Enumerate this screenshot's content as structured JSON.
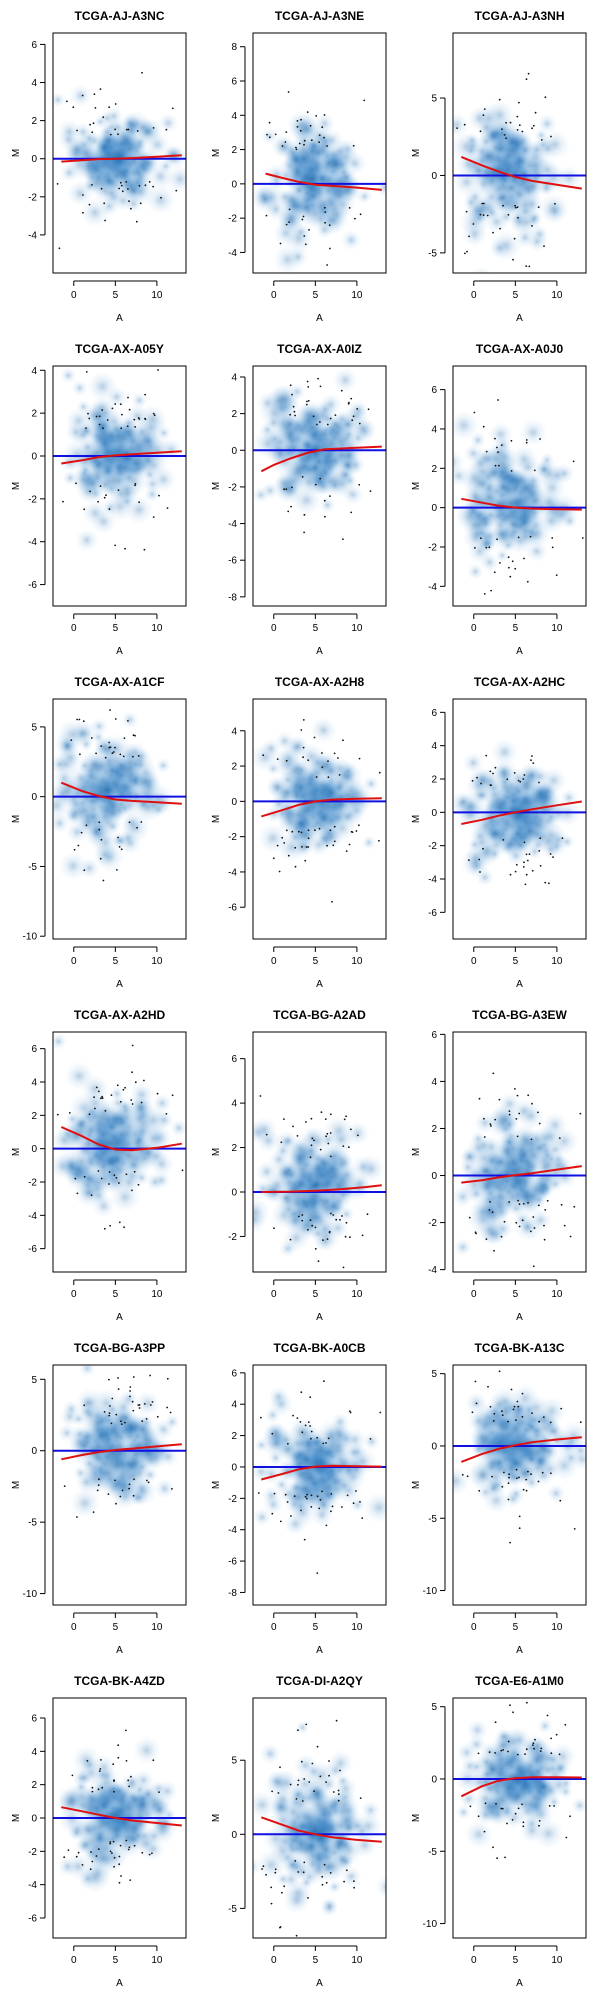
{
  "figure": {
    "xlabel": "A",
    "ylabel": "M"
  },
  "colors": {
    "density": "#2a7fc8",
    "loess": "#e01010",
    "baseline": "#1010e0",
    "points": "#111111"
  },
  "chart_data": [
    {
      "type": "scatter",
      "title": "TCGA-AJ-A3NC",
      "xlabel": "A",
      "ylabel": "M",
      "xlim": [
        -2.5,
        13.5
      ],
      "ylim": [
        -6,
        6.6
      ],
      "xticks": [
        0,
        5,
        10
      ],
      "yticks": [
        -4,
        -2,
        0,
        2,
        4,
        6
      ],
      "loess": [
        [
          -1.5,
          -0.15
        ],
        [
          1,
          -0.08
        ],
        [
          3,
          -0.02
        ],
        [
          5,
          0.0
        ],
        [
          7,
          0.03
        ],
        [
          10,
          0.1
        ],
        [
          13,
          0.18
        ]
      ],
      "cloud": [
        5,
        0.0,
        3,
        1.3
      ],
      "baseline": 0
    },
    {
      "type": "scatter",
      "title": "TCGA-AJ-A3NE",
      "xlabel": "A",
      "ylabel": "M",
      "xlim": [
        -2.5,
        13.5
      ],
      "ylim": [
        -5.2,
        8.8
      ],
      "xticks": [
        0,
        5,
        10
      ],
      "yticks": [
        -4,
        -2,
        0,
        2,
        4,
        6,
        8
      ],
      "loess": [
        [
          -1,
          0.6
        ],
        [
          1,
          0.35
        ],
        [
          3,
          0.12
        ],
        [
          5,
          -0.05
        ],
        [
          7,
          -0.12
        ],
        [
          10,
          -0.22
        ],
        [
          13,
          -0.35
        ]
      ],
      "cloud": [
        4.5,
        0.3,
        3,
        1.8
      ],
      "baseline": 0
    },
    {
      "type": "scatter",
      "title": "TCGA-AJ-A3NH",
      "xlabel": "A",
      "ylabel": "M",
      "xlim": [
        -2.5,
        13.5
      ],
      "ylim": [
        -6.3,
        9.2
      ],
      "xticks": [
        0,
        5,
        10
      ],
      "yticks": [
        -5,
        0,
        5
      ],
      "loess": [
        [
          -1.5,
          1.2
        ],
        [
          1,
          0.65
        ],
        [
          3,
          0.25
        ],
        [
          5,
          -0.1
        ],
        [
          7,
          -0.35
        ],
        [
          10,
          -0.6
        ],
        [
          13,
          -0.85
        ]
      ],
      "cloud": [
        4,
        0.3,
        3,
        2.2
      ],
      "baseline": 0
    },
    {
      "type": "scatter",
      "title": "TCGA-AX-A05Y",
      "xlabel": "A",
      "ylabel": "M",
      "xlim": [
        -2.5,
        13.5
      ],
      "ylim": [
        -7,
        4.2
      ],
      "xticks": [
        0,
        5,
        10
      ],
      "yticks": [
        -6,
        -4,
        -2,
        0,
        2,
        4
      ],
      "loess": [
        [
          -1.5,
          -0.35
        ],
        [
          1,
          -0.2
        ],
        [
          3,
          -0.05
        ],
        [
          5,
          0.03
        ],
        [
          7,
          0.08
        ],
        [
          10,
          0.15
        ],
        [
          13,
          0.22
        ]
      ],
      "cloud": [
        5,
        0.0,
        3,
        1.4
      ],
      "baseline": 0
    },
    {
      "type": "scatter",
      "title": "TCGA-AX-A0IZ",
      "xlabel": "A",
      "ylabel": "M",
      "xlim": [
        -2.5,
        13.5
      ],
      "ylim": [
        -8.5,
        4.6
      ],
      "xticks": [
        0,
        5,
        10
      ],
      "yticks": [
        -8,
        -6,
        -4,
        -2,
        0,
        2,
        4
      ],
      "loess": [
        [
          -1.5,
          -1.15
        ],
        [
          0,
          -0.8
        ],
        [
          2,
          -0.45
        ],
        [
          4,
          -0.15
        ],
        [
          6,
          0.05
        ],
        [
          9,
          0.12
        ],
        [
          13,
          0.2
        ]
      ],
      "cloud": [
        5,
        0.0,
        3,
        1.5
      ],
      "baseline": 0
    },
    {
      "type": "scatter",
      "title": "TCGA-AX-A0J0",
      "xlabel": "A",
      "ylabel": "M",
      "xlim": [
        -2.5,
        13.5
      ],
      "ylim": [
        -5,
        7.2
      ],
      "xticks": [
        0,
        5,
        10
      ],
      "yticks": [
        -4,
        -2,
        0,
        2,
        4,
        6
      ],
      "loess": [
        [
          -1.5,
          0.45
        ],
        [
          1,
          0.25
        ],
        [
          3,
          0.1
        ],
        [
          5,
          0.0
        ],
        [
          7,
          -0.05
        ],
        [
          10,
          -0.08
        ],
        [
          13,
          -0.1
        ]
      ],
      "cloud": [
        4.5,
        0.2,
        3,
        1.7
      ],
      "baseline": 0
    },
    {
      "type": "scatter",
      "title": "TCGA-AX-A1CF",
      "xlabel": "A",
      "ylabel": "M",
      "xlim": [
        -2.5,
        13.5
      ],
      "ylim": [
        -10.2,
        7
      ],
      "xticks": [
        0,
        5,
        10
      ],
      "yticks": [
        -10,
        -5,
        0,
        5
      ],
      "loess": [
        [
          -1.5,
          1.0
        ],
        [
          1,
          0.4
        ],
        [
          3,
          0.05
        ],
        [
          5,
          -0.2
        ],
        [
          7,
          -0.3
        ],
        [
          10,
          -0.4
        ],
        [
          13,
          -0.5
        ]
      ],
      "cloud": [
        4,
        0.5,
        3,
        2.3
      ],
      "baseline": 0
    },
    {
      "type": "scatter",
      "title": "TCGA-AX-A2H8",
      "xlabel": "A",
      "ylabel": "M",
      "xlim": [
        -2.5,
        13.5
      ],
      "ylim": [
        -7.8,
        5.8
      ],
      "xticks": [
        0,
        5,
        10
      ],
      "yticks": [
        -6,
        -4,
        -2,
        0,
        2,
        4
      ],
      "loess": [
        [
          -1.5,
          -0.85
        ],
        [
          1,
          -0.5
        ],
        [
          3,
          -0.2
        ],
        [
          5,
          0.0
        ],
        [
          7,
          0.1
        ],
        [
          10,
          0.15
        ],
        [
          13,
          0.18
        ]
      ],
      "cloud": [
        5,
        0.0,
        3,
        1.5
      ],
      "baseline": 0
    },
    {
      "type": "scatter",
      "title": "TCGA-AX-A2HC",
      "xlabel": "A",
      "ylabel": "M",
      "xlim": [
        -2.5,
        13.5
      ],
      "ylim": [
        -7.6,
        6.8
      ],
      "xticks": [
        0,
        5,
        10
      ],
      "yticks": [
        -6,
        -4,
        -2,
        0,
        2,
        4,
        6
      ],
      "loess": [
        [
          -1.5,
          -0.7
        ],
        [
          1,
          -0.45
        ],
        [
          3,
          -0.2
        ],
        [
          5,
          0.0
        ],
        [
          7,
          0.18
        ],
        [
          10,
          0.42
        ],
        [
          13,
          0.65
        ]
      ],
      "cloud": [
        5,
        0.0,
        3,
        1.7
      ],
      "baseline": 0
    },
    {
      "type": "scatter",
      "title": "TCGA-AX-A2HD",
      "xlabel": "A",
      "ylabel": "M",
      "xlim": [
        -2.5,
        13.5
      ],
      "ylim": [
        -7.4,
        7
      ],
      "xticks": [
        0,
        5,
        10
      ],
      "yticks": [
        -6,
        -4,
        -2,
        0,
        2,
        4,
        6
      ],
      "loess": [
        [
          -1.5,
          1.3
        ],
        [
          1,
          0.75
        ],
        [
          3,
          0.25
        ],
        [
          5,
          -0.05
        ],
        [
          7,
          -0.1
        ],
        [
          10,
          0.05
        ],
        [
          13,
          0.3
        ]
      ],
      "cloud": [
        4.5,
        0.3,
        3,
        1.7
      ],
      "baseline": 0
    },
    {
      "type": "scatter",
      "title": "TCGA-BG-A2AD",
      "xlabel": "A",
      "ylabel": "M",
      "xlim": [
        -2.5,
        13.5
      ],
      "ylim": [
        -3.6,
        7.2
      ],
      "xticks": [
        0,
        5,
        10
      ],
      "yticks": [
        -2,
        0,
        2,
        4,
        6
      ],
      "loess": [
        [
          -1.5,
          0.0
        ],
        [
          2,
          0.02
        ],
        [
          5,
          0.06
        ],
        [
          8,
          0.12
        ],
        [
          11,
          0.22
        ],
        [
          13,
          0.3
        ]
      ],
      "cloud": [
        5,
        0.3,
        3,
        1.4
      ],
      "baseline": 0
    },
    {
      "type": "scatter",
      "title": "TCGA-BG-A3EW",
      "xlabel": "A",
      "ylabel": "M",
      "xlim": [
        -2.5,
        13.5
      ],
      "ylim": [
        -4.1,
        6.1
      ],
      "xticks": [
        0,
        5,
        10
      ],
      "yticks": [
        -4,
        -2,
        0,
        2,
        4,
        6
      ],
      "loess": [
        [
          -1.5,
          -0.3
        ],
        [
          1,
          -0.2
        ],
        [
          3,
          -0.08
        ],
        [
          5,
          0.02
        ],
        [
          7,
          0.1
        ],
        [
          10,
          0.25
        ],
        [
          13,
          0.4
        ]
      ],
      "cloud": [
        5,
        0.2,
        3,
        1.4
      ],
      "baseline": 0
    },
    {
      "type": "scatter",
      "title": "TCGA-BG-A3PP",
      "xlabel": "A",
      "ylabel": "M",
      "xlim": [
        -2.5,
        13.5
      ],
      "ylim": [
        -10.8,
        6
      ],
      "xticks": [
        0,
        5,
        10
      ],
      "yticks": [
        -10,
        -5,
        0,
        5
      ],
      "loess": [
        [
          -1.5,
          -0.6
        ],
        [
          1,
          -0.3
        ],
        [
          3,
          -0.1
        ],
        [
          5,
          0.05
        ],
        [
          7,
          0.15
        ],
        [
          10,
          0.3
        ],
        [
          13,
          0.45
        ]
      ],
      "cloud": [
        5,
        0.0,
        3,
        2.0
      ],
      "baseline": 0
    },
    {
      "type": "scatter",
      "title": "TCGA-BK-A0CB",
      "xlabel": "A",
      "ylabel": "M",
      "xlim": [
        -2.5,
        13.5
      ],
      "ylim": [
        -8.8,
        6.5
      ],
      "xticks": [
        0,
        5,
        10
      ],
      "yticks": [
        -8,
        -6,
        -4,
        -2,
        0,
        2,
        4,
        6
      ],
      "loess": [
        [
          -1.5,
          -0.8
        ],
        [
          1,
          -0.45
        ],
        [
          3,
          -0.15
        ],
        [
          5,
          0.02
        ],
        [
          7,
          0.08
        ],
        [
          10,
          0.05
        ],
        [
          13,
          0.02
        ]
      ],
      "cloud": [
        5,
        0.0,
        3,
        1.6
      ],
      "baseline": 0
    },
    {
      "type": "scatter",
      "title": "TCGA-BK-A13C",
      "xlabel": "A",
      "ylabel": "M",
      "xlim": [
        -2.5,
        13.5
      ],
      "ylim": [
        -11,
        5.6
      ],
      "xticks": [
        0,
        5,
        10
      ],
      "yticks": [
        -10,
        -5,
        0,
        5
      ],
      "loess": [
        [
          -1.5,
          -1.1
        ],
        [
          1,
          -0.55
        ],
        [
          3,
          -0.2
        ],
        [
          5,
          0.05
        ],
        [
          7,
          0.25
        ],
        [
          10,
          0.45
        ],
        [
          13,
          0.6
        ]
      ],
      "cloud": [
        5,
        0.0,
        3,
        1.8
      ],
      "baseline": 0
    },
    {
      "type": "scatter",
      "title": "TCGA-BK-A4ZD",
      "xlabel": "A",
      "ylabel": "M",
      "xlim": [
        -2.5,
        13.5
      ],
      "ylim": [
        -7.2,
        7.2
      ],
      "xticks": [
        0,
        5,
        10
      ],
      "yticks": [
        -6,
        -4,
        -2,
        0,
        2,
        4,
        6
      ],
      "loess": [
        [
          -1.5,
          0.65
        ],
        [
          1,
          0.4
        ],
        [
          3,
          0.2
        ],
        [
          5,
          0.0
        ],
        [
          7,
          -0.15
        ],
        [
          10,
          -0.3
        ],
        [
          13,
          -0.45
        ]
      ],
      "cloud": [
        5,
        0.1,
        3,
        1.6
      ],
      "baseline": 0
    },
    {
      "type": "scatter",
      "title": "TCGA-DI-A2QY",
      "xlabel": "A",
      "ylabel": "M",
      "xlim": [
        -2.5,
        13.5
      ],
      "ylim": [
        -7,
        9.2
      ],
      "xticks": [
        0,
        5,
        10
      ],
      "yticks": [
        -5,
        0,
        5
      ],
      "loess": [
        [
          -1.5,
          1.15
        ],
        [
          1,
          0.65
        ],
        [
          3,
          0.25
        ],
        [
          5,
          0.0
        ],
        [
          7,
          -0.2
        ],
        [
          10,
          -0.38
        ],
        [
          13,
          -0.5
        ]
      ],
      "cloud": [
        5,
        0.2,
        3,
        2.2
      ],
      "baseline": 0
    },
    {
      "type": "scatter",
      "title": "TCGA-E6-A1M0",
      "xlabel": "A",
      "ylabel": "M",
      "xlim": [
        -2.5,
        13.5
      ],
      "ylim": [
        -11,
        5.6
      ],
      "xticks": [
        0,
        5,
        10
      ],
      "yticks": [
        -10,
        -5,
        0,
        5
      ],
      "loess": [
        [
          -1.5,
          -1.2
        ],
        [
          1,
          -0.5
        ],
        [
          3,
          -0.12
        ],
        [
          5,
          0.05
        ],
        [
          7,
          0.12
        ],
        [
          10,
          0.12
        ],
        [
          13,
          0.1
        ]
      ],
      "cloud": [
        5,
        0.0,
        3,
        1.8
      ],
      "baseline": 0
    }
  ]
}
